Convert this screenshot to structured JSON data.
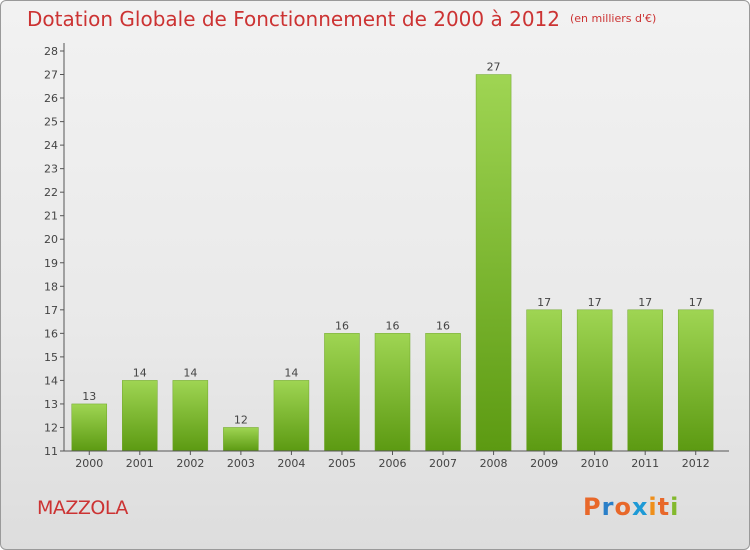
{
  "title": "Dotation Globale de Fonctionnement de 2000 à 2012",
  "subtitle": "(en milliers d'€)",
  "commune": "MAZZOLA",
  "logo": {
    "letters": [
      "P",
      "r",
      "o",
      "x",
      "i",
      "t",
      "i"
    ],
    "colors": [
      "#e8682a",
      "#2a7fc8",
      "#e8682a",
      "#1e9ad6",
      "#ef8f1a",
      "#e8682a",
      "#83b92d"
    ]
  },
  "chart_data": {
    "type": "bar",
    "title": "Dotation Globale de Fonctionnement de 2000 à 2012",
    "subtitle": "(en milliers d'€)",
    "categories": [
      "2000",
      "2001",
      "2002",
      "2003",
      "2004",
      "2005",
      "2006",
      "2007",
      "2008",
      "2009",
      "2010",
      "2011",
      "2012"
    ],
    "values": [
      13,
      14,
      14,
      12,
      14,
      16,
      16,
      16,
      27,
      17,
      17,
      17,
      17
    ],
    "value_labels": [
      "13",
      "14",
      "14",
      "12",
      "14",
      "16",
      "16",
      "16",
      "27",
      "17",
      "17",
      "17",
      "17"
    ],
    "ylim": [
      11,
      28
    ],
    "yticks": [
      "11",
      "12",
      "13",
      "14",
      "15",
      "16",
      "17",
      "18",
      "19",
      "20",
      "21",
      "22",
      "23",
      "24",
      "25",
      "26",
      "27",
      "28"
    ],
    "xlabel": "",
    "ylabel": "",
    "grid": false,
    "colors": {
      "bar_top": "#9fd553",
      "bar_bottom": "#5c9a12",
      "axis": "#555555",
      "text": "#444444"
    }
  }
}
